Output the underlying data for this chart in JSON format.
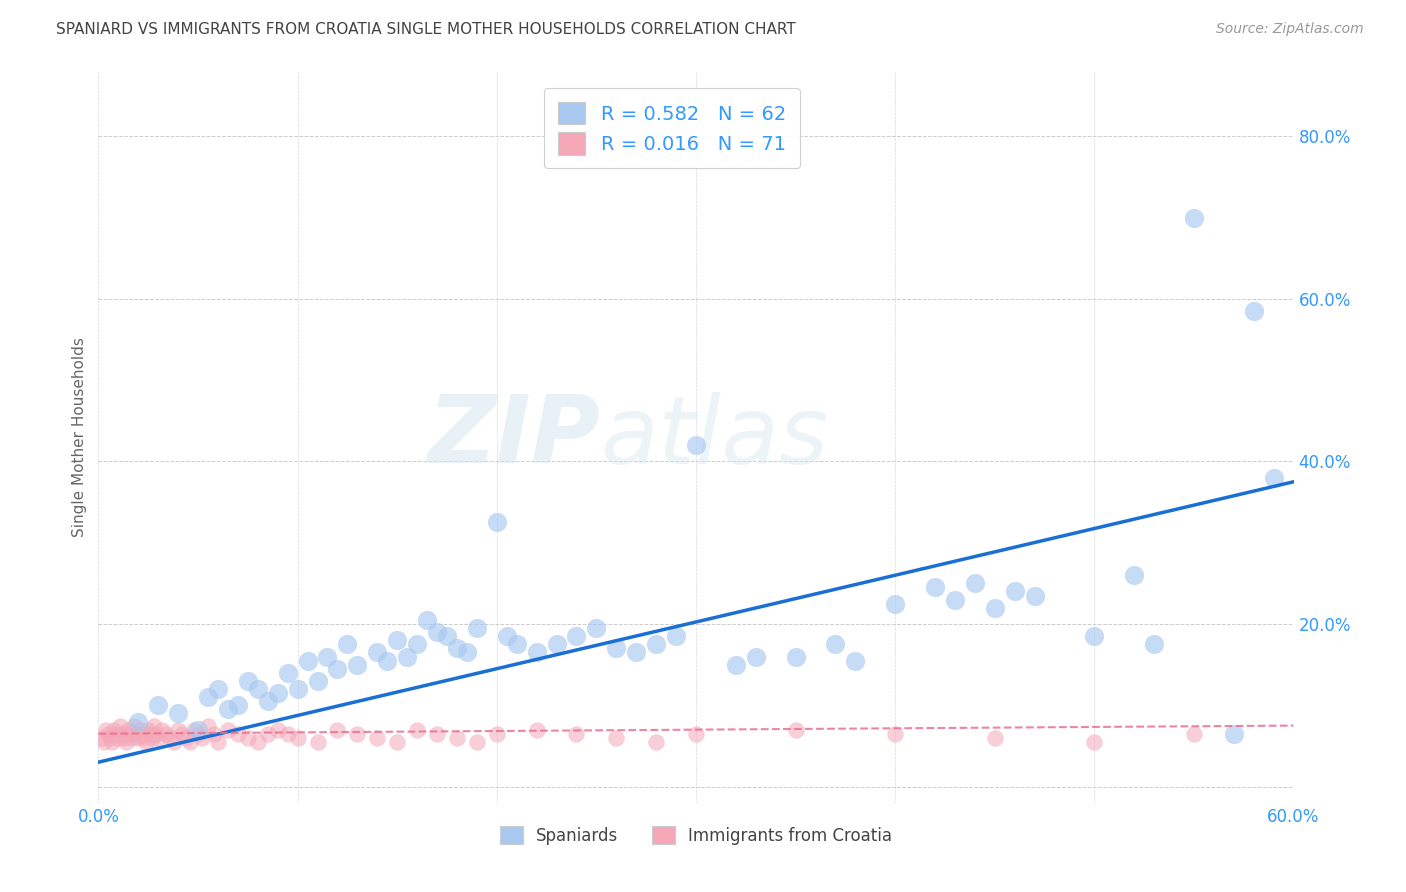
{
  "title": "SPANIARD VS IMMIGRANTS FROM CROATIA SINGLE MOTHER HOUSEHOLDS CORRELATION CHART",
  "source": "Source: ZipAtlas.com",
  "ylabel": "Single Mother Households",
  "xlabel_spaniards": "Spaniards",
  "xlabel_immigrants": "Immigrants from Croatia",
  "xlim": [
    0.0,
    0.6
  ],
  "ylim": [
    -0.02,
    0.88
  ],
  "xticks": [
    0.0,
    0.1,
    0.2,
    0.3,
    0.4,
    0.5,
    0.6
  ],
  "xtick_labels": [
    "0.0%",
    "",
    "",
    "",
    "",
    "",
    "60.0%"
  ],
  "yticks": [
    0.0,
    0.2,
    0.4,
    0.6,
    0.8
  ],
  "ytick_labels": [
    "",
    "20.0%",
    "40.0%",
    "60.0%",
    "80.0%"
  ],
  "R_spaniards": 0.582,
  "N_spaniards": 62,
  "R_immigrants": 0.016,
  "N_immigrants": 71,
  "color_spaniards": "#a8c8f0",
  "color_immigrants": "#f4a8b8",
  "color_line_spaniards": "#1a6fd4",
  "color_line_immigrants": "#e87090",
  "color_tick_labels": "#3399ff",
  "color_title": "#444444",
  "background_color": "#ffffff",
  "watermark_zip": "ZIP",
  "watermark_atlas": "atlas",
  "sp_line_x0": 0.0,
  "sp_line_y0": 0.03,
  "sp_line_x1": 0.6,
  "sp_line_y1": 0.375,
  "im_line_x0": 0.0,
  "im_line_y0": 0.065,
  "im_line_x1": 0.6,
  "im_line_y1": 0.075,
  "spaniards_x": [
    0.02,
    0.03,
    0.04,
    0.05,
    0.055,
    0.06,
    0.065,
    0.07,
    0.075,
    0.08,
    0.085,
    0.09,
    0.095,
    0.1,
    0.105,
    0.11,
    0.115,
    0.12,
    0.125,
    0.13,
    0.14,
    0.145,
    0.15,
    0.155,
    0.16,
    0.165,
    0.17,
    0.175,
    0.18,
    0.185,
    0.19,
    0.2,
    0.205,
    0.21,
    0.22,
    0.23,
    0.24,
    0.25,
    0.26,
    0.27,
    0.28,
    0.29,
    0.3,
    0.32,
    0.33,
    0.35,
    0.37,
    0.38,
    0.4,
    0.42,
    0.43,
    0.44,
    0.45,
    0.46,
    0.47,
    0.5,
    0.52,
    0.53,
    0.55,
    0.57,
    0.58,
    0.59
  ],
  "spaniards_y": [
    0.08,
    0.1,
    0.09,
    0.07,
    0.11,
    0.12,
    0.095,
    0.1,
    0.13,
    0.12,
    0.105,
    0.115,
    0.14,
    0.12,
    0.155,
    0.13,
    0.16,
    0.145,
    0.175,
    0.15,
    0.165,
    0.155,
    0.18,
    0.16,
    0.175,
    0.205,
    0.19,
    0.185,
    0.17,
    0.165,
    0.195,
    0.325,
    0.185,
    0.175,
    0.165,
    0.175,
    0.185,
    0.195,
    0.17,
    0.165,
    0.175,
    0.185,
    0.42,
    0.15,
    0.16,
    0.16,
    0.175,
    0.155,
    0.225,
    0.245,
    0.23,
    0.25,
    0.22,
    0.24,
    0.235,
    0.185,
    0.26,
    0.175,
    0.7,
    0.065,
    0.585,
    0.38
  ],
  "immigrants_x": [
    0.002,
    0.003,
    0.004,
    0.005,
    0.006,
    0.007,
    0.008,
    0.009,
    0.01,
    0.011,
    0.012,
    0.013,
    0.014,
    0.015,
    0.016,
    0.017,
    0.018,
    0.019,
    0.02,
    0.021,
    0.022,
    0.023,
    0.024,
    0.025,
    0.026,
    0.027,
    0.028,
    0.029,
    0.03,
    0.032,
    0.034,
    0.036,
    0.038,
    0.04,
    0.042,
    0.044,
    0.046,
    0.048,
    0.05,
    0.052,
    0.055,
    0.058,
    0.06,
    0.065,
    0.07,
    0.075,
    0.08,
    0.085,
    0.09,
    0.095,
    0.1,
    0.11,
    0.12,
    0.13,
    0.14,
    0.15,
    0.16,
    0.17,
    0.18,
    0.19,
    0.2,
    0.22,
    0.24,
    0.26,
    0.28,
    0.3,
    0.35,
    0.4,
    0.45,
    0.5,
    0.55
  ],
  "immigrants_y": [
    0.06,
    0.055,
    0.07,
    0.065,
    0.06,
    0.055,
    0.07,
    0.065,
    0.06,
    0.075,
    0.065,
    0.06,
    0.055,
    0.07,
    0.065,
    0.06,
    0.075,
    0.065,
    0.06,
    0.07,
    0.065,
    0.06,
    0.055,
    0.07,
    0.065,
    0.06,
    0.075,
    0.065,
    0.06,
    0.07,
    0.065,
    0.06,
    0.055,
    0.07,
    0.065,
    0.06,
    0.055,
    0.07,
    0.065,
    0.06,
    0.075,
    0.065,
    0.055,
    0.07,
    0.065,
    0.06,
    0.055,
    0.065,
    0.07,
    0.065,
    0.06,
    0.055,
    0.07,
    0.065,
    0.06,
    0.055,
    0.07,
    0.065,
    0.06,
    0.055,
    0.065,
    0.07,
    0.065,
    0.06,
    0.055,
    0.065,
    0.07,
    0.065,
    0.06,
    0.055,
    0.065
  ]
}
